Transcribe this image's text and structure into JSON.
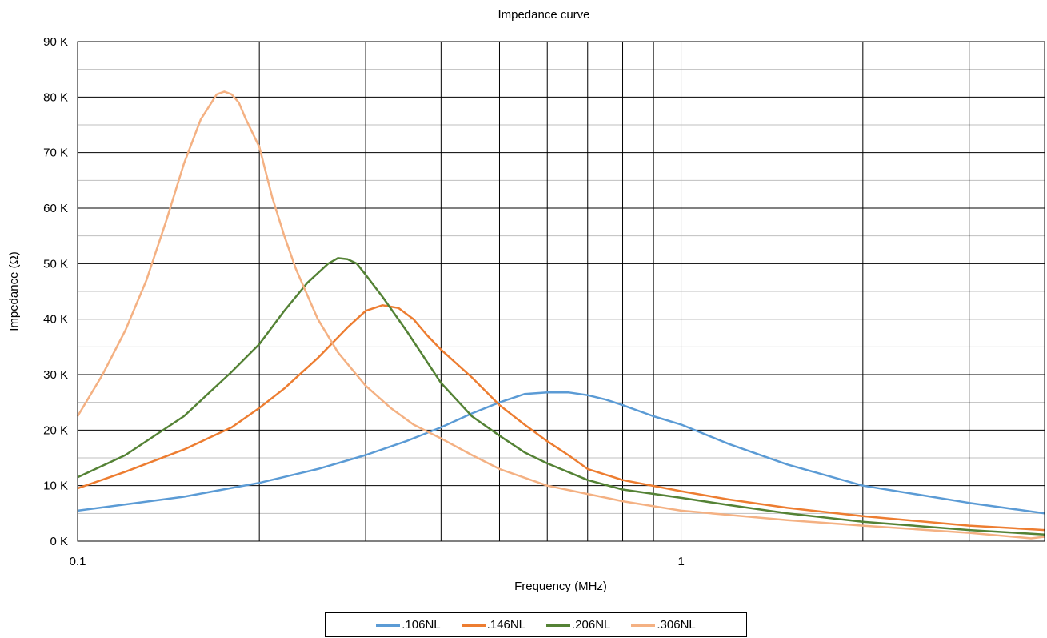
{
  "chart_data": {
    "type": "line",
    "title": "Impedance curve",
    "xlabel": "Frequency (MHz)",
    "ylabel": "Impedance (Ω)",
    "x_scale": "log",
    "xlim": [
      0.1,
      4
    ],
    "ylim": [
      0,
      90000
    ],
    "x_tick_labels": [
      {
        "value": 0.1,
        "label": "0.1"
      },
      {
        "value": 1,
        "label": "1"
      }
    ],
    "y_tick_labels": [
      {
        "value": 0,
        "label": "0 K"
      },
      {
        "value": 10000,
        "label": "10 K"
      },
      {
        "value": 20000,
        "label": "20 K"
      },
      {
        "value": 30000,
        "label": "30 K"
      },
      {
        "value": 40000,
        "label": "40 K"
      },
      {
        "value": 50000,
        "label": "50 K"
      },
      {
        "value": 60000,
        "label": "60 K"
      },
      {
        "value": 70000,
        "label": "70 K"
      },
      {
        "value": 80000,
        "label": "80 K"
      },
      {
        "value": 90000,
        "label": "90 K"
      }
    ],
    "major_gridlines_x": [
      0.2,
      0.3,
      0.4,
      0.5,
      0.6,
      0.7,
      0.8,
      0.9,
      2,
      3
    ],
    "minor_gridlines_y": [
      5000,
      15000,
      25000,
      35000,
      45000,
      55000,
      65000,
      75000,
      85000
    ],
    "grid": true,
    "legend_position": "bottom",
    "series": [
      {
        "name": ".106NL",
        "color": "#5B9BD5",
        "x": [
          0.1,
          0.15,
          0.2,
          0.25,
          0.3,
          0.35,
          0.4,
          0.45,
          0.5,
          0.55,
          0.6,
          0.65,
          0.7,
          0.75,
          0.8,
          0.9,
          1.0,
          1.2,
          1.5,
          2.0,
          2.5,
          3.0,
          4.0
        ],
        "y": [
          5500,
          8000,
          10500,
          13000,
          15500,
          18000,
          20500,
          23000,
          25000,
          26500,
          26800,
          26800,
          26300,
          25500,
          24500,
          22500,
          21000,
          17500,
          13800,
          10000,
          8300,
          6900,
          5000
        ]
      },
      {
        "name": ".146NL",
        "color": "#ED7D31",
        "x": [
          0.1,
          0.12,
          0.15,
          0.18,
          0.2,
          0.22,
          0.25,
          0.28,
          0.3,
          0.32,
          0.34,
          0.36,
          0.38,
          0.4,
          0.45,
          0.5,
          0.55,
          0.6,
          0.65,
          0.7,
          0.8,
          1.0,
          1.2,
          1.5,
          2.0,
          3.0,
          4.0
        ],
        "y": [
          9500,
          12500,
          16500,
          20500,
          24000,
          27500,
          33000,
          38500,
          41500,
          42500,
          42000,
          40000,
          37000,
          34500,
          29500,
          24500,
          21000,
          18000,
          15500,
          13000,
          11000,
          9000,
          7500,
          6000,
          4500,
          2800,
          2000
        ]
      },
      {
        "name": ".206NL",
        "color": "#548235",
        "x": [
          0.1,
          0.12,
          0.15,
          0.18,
          0.2,
          0.22,
          0.24,
          0.26,
          0.27,
          0.28,
          0.29,
          0.3,
          0.32,
          0.35,
          0.4,
          0.45,
          0.5,
          0.55,
          0.6,
          0.7,
          0.8,
          1.0,
          1.2,
          1.5,
          2.0,
          3.0,
          4.0
        ],
        "y": [
          11500,
          15500,
          22500,
          30500,
          35500,
          41500,
          46500,
          50000,
          51000,
          50800,
          50000,
          48000,
          44000,
          38000,
          28500,
          22500,
          19000,
          16000,
          14000,
          11000,
          9300,
          7800,
          6500,
          5000,
          3500,
          2000,
          1200
        ]
      },
      {
        "name": ".306NL",
        "color": "#F4B183",
        "x": [
          0.1,
          0.11,
          0.12,
          0.13,
          0.14,
          0.15,
          0.16,
          0.17,
          0.175,
          0.18,
          0.185,
          0.19,
          0.2,
          0.21,
          0.22,
          0.23,
          0.25,
          0.27,
          0.3,
          0.33,
          0.36,
          0.4,
          0.45,
          0.5,
          0.6,
          0.7,
          0.8,
          1.0,
          1.5,
          2.0,
          3.0,
          3.8,
          4.0
        ],
        "y": [
          22500,
          30000,
          38000,
          47000,
          57500,
          68000,
          76000,
          80500,
          81000,
          80500,
          79000,
          76000,
          71000,
          62000,
          55000,
          49000,
          40000,
          34000,
          28000,
          24000,
          21000,
          18500,
          15500,
          13000,
          10000,
          8500,
          7200,
          5500,
          3800,
          2800,
          1500,
          500,
          800
        ]
      }
    ]
  }
}
